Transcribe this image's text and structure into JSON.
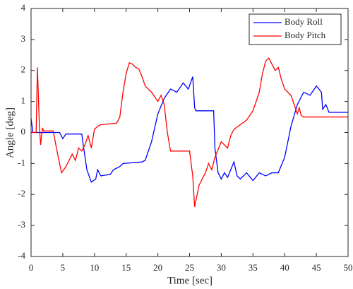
{
  "chart_data": {
    "type": "line",
    "xlabel": "Time [sec]",
    "ylabel": "Angle [deg]",
    "xlim": [
      0,
      50
    ],
    "xticks": [
      0,
      5,
      10,
      15,
      20,
      25,
      30,
      35,
      40,
      45,
      50
    ],
    "ylim": [
      -4,
      4
    ],
    "yticks": [
      -4,
      -3,
      -2,
      -1,
      0,
      1,
      2,
      3,
      4
    ],
    "grid": false,
    "legend": "upper right",
    "series": [
      {
        "name": "Body Roll",
        "color": "#0000ff",
        "x": [
          0,
          0.3,
          4.5,
          5,
          5.5,
          8,
          8.3,
          8.8,
          9.5,
          10.2,
          10.5,
          11,
          12.5,
          13,
          14,
          14.5,
          17.5,
          18,
          19,
          20,
          21,
          22,
          23,
          24,
          24.8,
          25.5,
          25.8,
          26,
          28.8,
          29,
          29.5,
          30,
          30.5,
          31,
          32,
          32.5,
          33,
          34,
          35,
          36,
          37,
          38,
          39,
          40,
          41,
          42,
          43,
          44,
          45,
          45.8,
          46,
          46.5,
          47,
          50
        ],
        "values": [
          0.45,
          0,
          0,
          -0.2,
          -0.05,
          -0.05,
          -0.5,
          -1.2,
          -1.6,
          -1.5,
          -1.2,
          -1.4,
          -1.35,
          -1.2,
          -1.1,
          -1.0,
          -0.95,
          -0.9,
          -0.3,
          0.6,
          1.1,
          1.4,
          1.3,
          1.6,
          1.4,
          1.8,
          0.8,
          0.7,
          0.7,
          -0.5,
          -1.3,
          -1.5,
          -1.3,
          -1.45,
          -0.95,
          -1.4,
          -1.5,
          -1.3,
          -1.55,
          -1.3,
          -1.4,
          -1.3,
          -1.3,
          -0.8,
          0.2,
          0.9,
          1.3,
          1.2,
          1.5,
          1.3,
          0.75,
          0.9,
          0.65,
          0.65
        ]
      },
      {
        "name": "Body Pitch",
        "color": "#ff0000",
        "x": [
          0,
          0.8,
          1,
          1.3,
          1.5,
          1.8,
          2,
          3.5,
          4,
          4.8,
          5.5,
          6.5,
          7,
          7.5,
          8,
          8.5,
          9,
          9.5,
          10,
          10.5,
          11,
          13.5,
          14,
          14.5,
          15,
          15.5,
          16,
          16.5,
          17,
          17.5,
          18,
          19,
          19.5,
          20,
          20.5,
          21,
          21.5,
          22,
          25,
          25.5,
          25.8,
          26.5,
          27.5,
          28,
          28.5,
          29,
          30,
          31,
          31.5,
          32,
          33,
          34,
          35,
          36,
          36.5,
          37,
          37.5,
          38,
          38.5,
          39,
          39.5,
          40,
          41,
          41.5,
          42,
          42.3,
          42.6,
          43,
          50
        ],
        "values": [
          0,
          0,
          2.1,
          0.3,
          -0.4,
          0.15,
          0.05,
          0.05,
          -0.5,
          -1.3,
          -1.1,
          -0.7,
          -0.9,
          -0.5,
          -0.6,
          -0.4,
          -0.1,
          -0.5,
          0.1,
          0.2,
          0.25,
          0.3,
          0.5,
          1.3,
          1.9,
          2.25,
          2.2,
          2.1,
          2.05,
          1.8,
          1.5,
          1.3,
          1.15,
          1.0,
          1.2,
          0.9,
          0.0,
          -0.6,
          -0.6,
          -1.4,
          -2.4,
          -1.7,
          -1.3,
          -1.0,
          -1.2,
          -0.8,
          -0.3,
          -0.5,
          -0.1,
          0.1,
          0.25,
          0.4,
          0.7,
          1.3,
          1.9,
          2.3,
          2.4,
          2.2,
          2.0,
          2.1,
          1.7,
          1.4,
          1.2,
          0.9,
          0.6,
          0.8,
          0.55,
          0.5,
          0.5
        ]
      }
    ]
  }
}
